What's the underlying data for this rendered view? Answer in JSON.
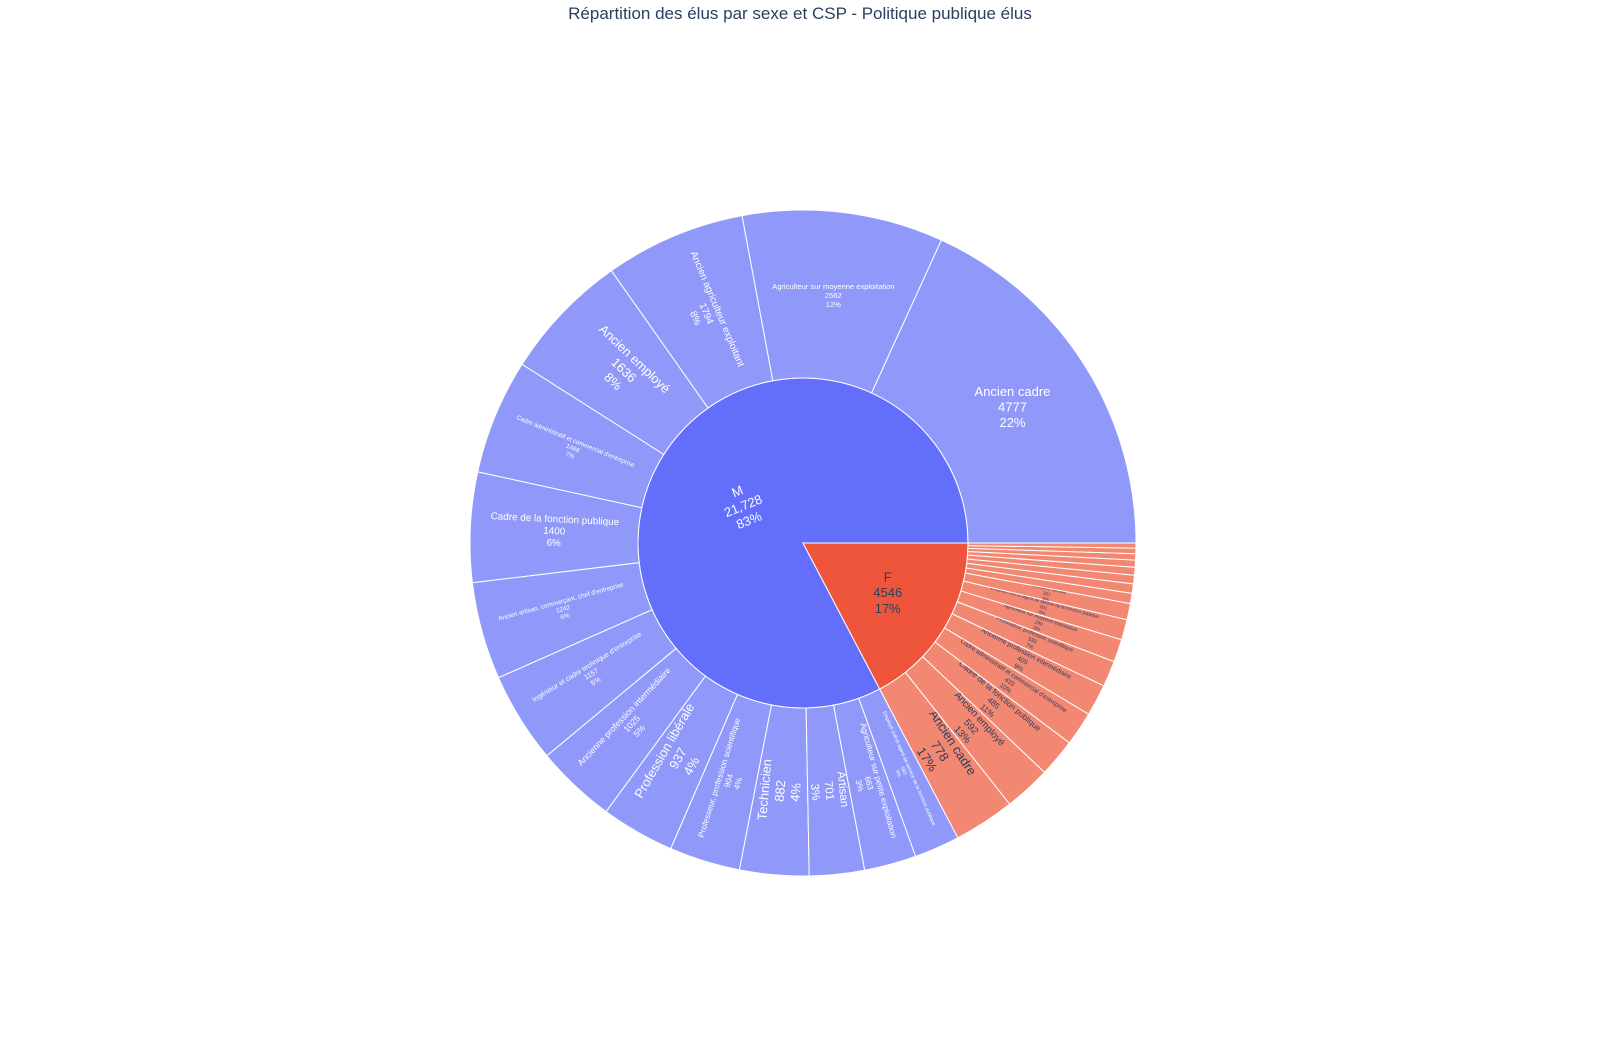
{
  "chart_data": {
    "type": "sunburst",
    "title": "Répartition des élus par sexe et CSP - Politique publique élus",
    "colors": {
      "M_inner": "#636efa",
      "M_outer": "#9099fa",
      "F_inner": "#ef553b",
      "F_outer": "#f28772",
      "text_dark": "#2a3f5f",
      "text_light": "#ffffff"
    },
    "nodes": [
      {
        "label": "M",
        "value_label": "21,728",
        "percent_label": "83%",
        "value": 21728,
        "children": [
          {
            "label": "Ancien cadre",
            "value": 4777,
            "percent_label": "22%"
          },
          {
            "label": "Agriculteur sur moyenne exploitation",
            "value": 2562,
            "percent_label": "12%"
          },
          {
            "label": "Ancien agriculteur exploitant",
            "value": 1794,
            "percent_label": "8%"
          },
          {
            "label": "Ancien employé",
            "value": 1636,
            "percent_label": "8%"
          },
          {
            "label": "Cadre administratif et commercial d'entreprise",
            "value": 1468,
            "percent_label": "7%"
          },
          {
            "label": "Cadre de la fonction publique",
            "value": 1400,
            "percent_label": "6%"
          },
          {
            "label": "Ancien artisan, commerçant, chef d'entreprise",
            "value": 1242,
            "percent_label": "6%"
          },
          {
            "label": "Ingénieur et cadre technique d'entreprise",
            "value": 1157,
            "percent_label": "5%"
          },
          {
            "label": "Ancienne profession intermédiaire",
            "value": 1025,
            "percent_label": "5%"
          },
          {
            "label": "Profession libérale",
            "value": 937,
            "percent_label": "4%"
          },
          {
            "label": "Professeur, profession scientifique",
            "value": 904,
            "percent_label": "4%"
          },
          {
            "label": "Technicien",
            "value": 882,
            "percent_label": "4%"
          },
          {
            "label": "Artisan",
            "value": 701,
            "percent_label": "3%"
          },
          {
            "label": "Agriculteur sur petite exploitation",
            "value": 663,
            "percent_label": "3%"
          },
          {
            "label": "Employé civil et agent de service de la fonction publique",
            "value": 580,
            "percent_label": "3%"
          }
        ]
      },
      {
        "label": "F",
        "value_label": "4546",
        "percent_label": "17%",
        "value": 4546,
        "children": [
          {
            "label": "Ancien cadre",
            "value": 778,
            "percent_label": "17%"
          },
          {
            "label": "Ancien employé",
            "value": 592,
            "percent_label": "13%"
          },
          {
            "label": "Cadre de la fonction publique",
            "value": 485,
            "percent_label": "11%"
          },
          {
            "label": "Cadre administratif et commercial d'entreprise",
            "value": 433,
            "percent_label": "10%"
          },
          {
            "label": "Ancienne profession intermédiaire",
            "value": 405,
            "percent_label": "9%"
          },
          {
            "label": "Professeur, profession scientifique",
            "value": 330,
            "percent_label": "7%"
          },
          {
            "label": "Agriculteur sur moyenne exploitation",
            "value": 290,
            "percent_label": "6%"
          },
          {
            "label": "Employé civil et agent de service de la fonction publique",
            "value": 261,
            "percent_label": "6%"
          },
          {
            "label": "Profession libérale",
            "value": 207,
            "percent_label": "5%"
          },
          {
            "label": "",
            "value": 130,
            "percent_label": ""
          },
          {
            "label": "",
            "value": 120,
            "percent_label": ""
          },
          {
            "label": "",
            "value": 110,
            "percent_label": ""
          },
          {
            "label": "",
            "value": 100,
            "percent_label": ""
          },
          {
            "label": "",
            "value": 90,
            "percent_label": ""
          },
          {
            "label": "",
            "value": 80,
            "percent_label": ""
          },
          {
            "label": "",
            "value": 70,
            "percent_label": ""
          },
          {
            "label": "",
            "value": 65,
            "percent_label": ""
          }
        ]
      }
    ]
  }
}
